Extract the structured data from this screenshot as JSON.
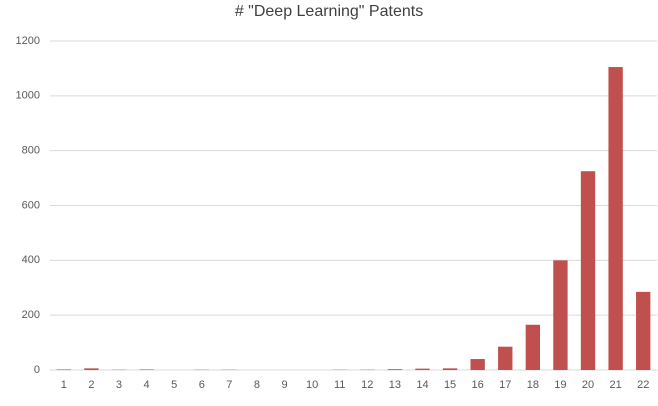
{
  "chart_data": {
    "type": "bar",
    "title": "# \"Deep Learning\" Patents",
    "categories": [
      "1",
      "2",
      "3",
      "4",
      "5",
      "6",
      "7",
      "8",
      "9",
      "10",
      "11",
      "12",
      "13",
      "14",
      "15",
      "16",
      "17",
      "18",
      "19",
      "20",
      "21",
      "22"
    ],
    "values": [
      2,
      6,
      1,
      2,
      0,
      1,
      1,
      0,
      0,
      0,
      1,
      1,
      3,
      5,
      6,
      40,
      85,
      165,
      400,
      725,
      1105,
      285
    ],
    "color": "#c0504d",
    "ylim": [
      0,
      1200
    ],
    "yticks": [
      0,
      200,
      400,
      600,
      800,
      1000,
      1200
    ],
    "grid": true
  }
}
